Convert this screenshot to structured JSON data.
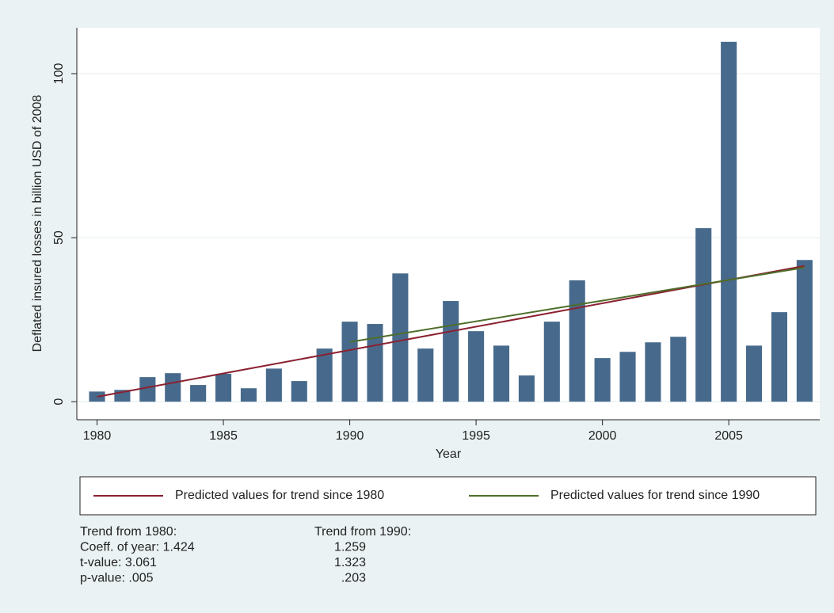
{
  "chart_data": {
    "type": "bar",
    "x": [
      1980,
      1981,
      1982,
      1983,
      1984,
      1985,
      1986,
      1987,
      1988,
      1989,
      1990,
      1991,
      1992,
      1993,
      1994,
      1995,
      1996,
      1997,
      1998,
      1999,
      2000,
      2001,
      2002,
      2003,
      2004,
      2005,
      2006,
      2007,
      2008
    ],
    "values": [
      3.1,
      3.6,
      7.5,
      8.7,
      5.1,
      8.5,
      4.1,
      10.1,
      6.3,
      16.2,
      24.4,
      23.7,
      39.1,
      16.2,
      30.7,
      21.5,
      17.1,
      8.0,
      24.4,
      37.0,
      13.3,
      15.2,
      18.1,
      19.8,
      52.9,
      109.7,
      17.1,
      27.3,
      43.2
    ],
    "color": "#476a8c",
    "lines": [
      {
        "name": "Predicted values for trend since 1980",
        "color": "#8b2131",
        "x": [
          1980,
          2008
        ],
        "values": [
          1.5,
          41.4
        ]
      },
      {
        "name": "Predicted values for trend since 1990",
        "color": "#4e6e2a",
        "x": [
          1990,
          2008
        ],
        "values": [
          18.2,
          40.9
        ]
      }
    ],
    "xlabel": "Year",
    "ylabel": "Deflated insured losses in billion USD of 2008",
    "xlim": [
      1979.2,
      2008.6
    ],
    "xticks": [
      1980,
      1985,
      1990,
      1995,
      2000,
      2005
    ],
    "ylim": [
      -5.5,
      114
    ],
    "yticks": [
      0,
      50,
      100
    ],
    "grid": true,
    "notes": [
      [
        "Trend from 1980:",
        "Trend from 1990:"
      ],
      [
        "Coeff. of year: 1.424",
        "1.259"
      ],
      [
        "t-value: 3.061",
        "1.323"
      ],
      [
        "p-value: .005",
        ".203"
      ]
    ]
  }
}
